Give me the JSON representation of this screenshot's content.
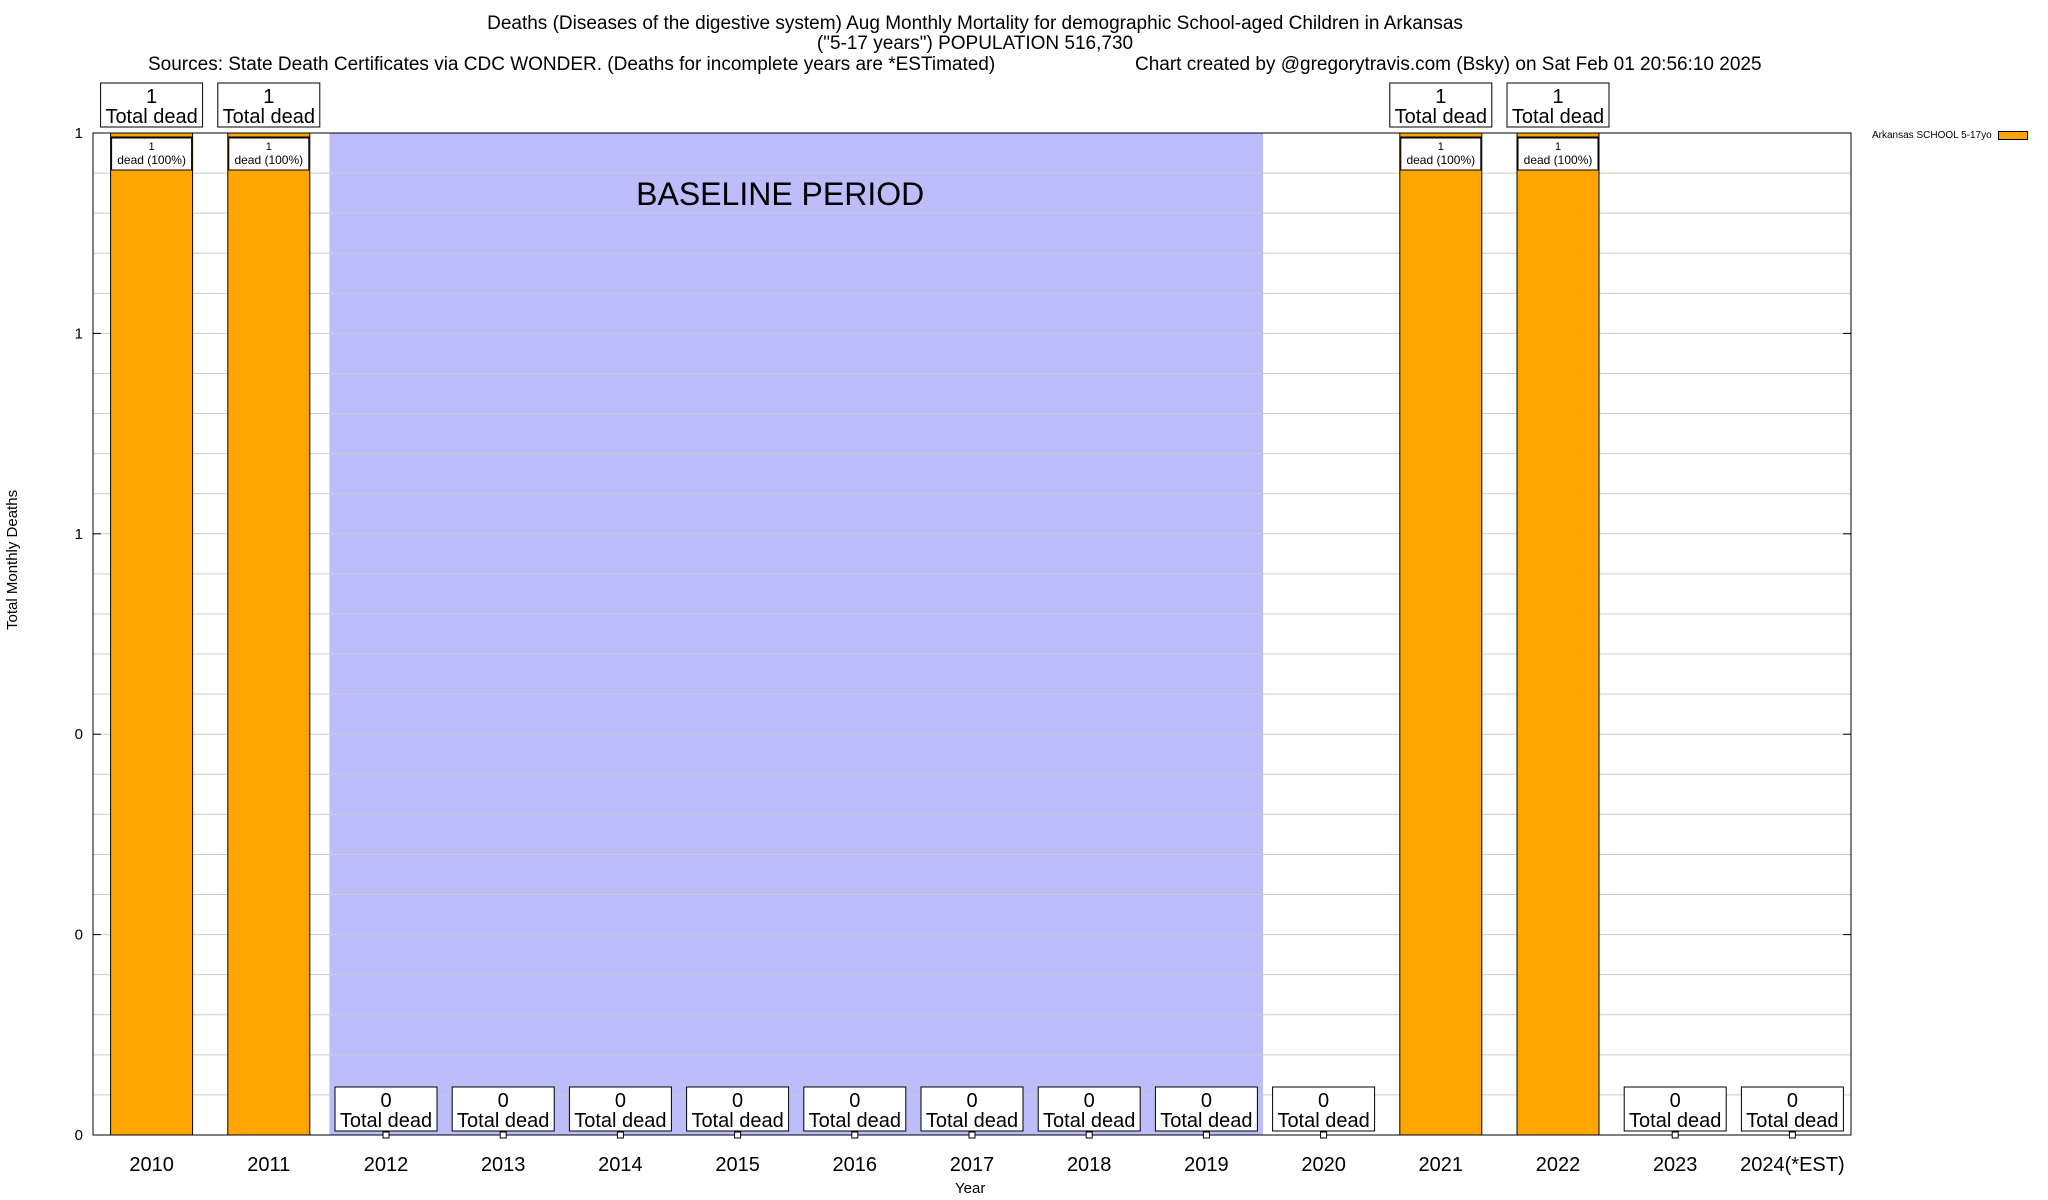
{
  "header": {
    "title_line1": "Deaths (Diseases of the digestive system) Aug Monthly Mortality for demographic School-aged Children in Arkansas",
    "title_line2": "(\"5-17 years\") POPULATION 516,730",
    "sources": "Sources: State Death Certificates via CDC WONDER. (Deaths for incomplete years are *ESTimated)",
    "credit": "Chart created by @gregorytravis.com (Bsky) on Sat Feb 01 20:56:10 2025"
  },
  "chart_data": {
    "type": "bar",
    "categories": [
      "2010",
      "2011",
      "2012",
      "2013",
      "2014",
      "2015",
      "2016",
      "2017",
      "2018",
      "2019",
      "2020",
      "2021",
      "2022",
      "2023",
      "2024(*EST)"
    ],
    "series": [
      {
        "name": "Arkansas SCHOOL 5-17yo",
        "color": "#ffa500",
        "values": [
          1,
          1,
          0,
          0,
          0,
          0,
          0,
          0,
          0,
          0,
          0,
          1,
          1,
          0,
          0
        ]
      }
    ],
    "total_labels": [
      "1",
      "1",
      "0",
      "0",
      "0",
      "0",
      "0",
      "0",
      "0",
      "0",
      "0",
      "1",
      "1",
      "0",
      "0"
    ],
    "total_suffix": "Total dead",
    "segment_labels": [
      "1\ndead (100%)",
      "1\ndead (100%)",
      "",
      "",
      "",
      "",
      "",
      "",
      "",
      "",
      "",
      "1\ndead (100%)",
      "1\ndead (100%)",
      "",
      ""
    ],
    "ylim": [
      0,
      1
    ],
    "ytick_values": [
      0,
      0.2,
      0.4,
      0.6,
      0.8,
      1.0
    ],
    "ytick_labels": [
      "0",
      "0",
      "0",
      "1",
      "1",
      "1"
    ],
    "xlabel": "Year",
    "ylabel": "Total Monthly Deaths",
    "grid": true,
    "legend_position": "top-right",
    "baseline_region": {
      "from": "2012",
      "to": "2019",
      "label": "BASELINE PERIOD",
      "color": "#bdbdfb"
    }
  }
}
